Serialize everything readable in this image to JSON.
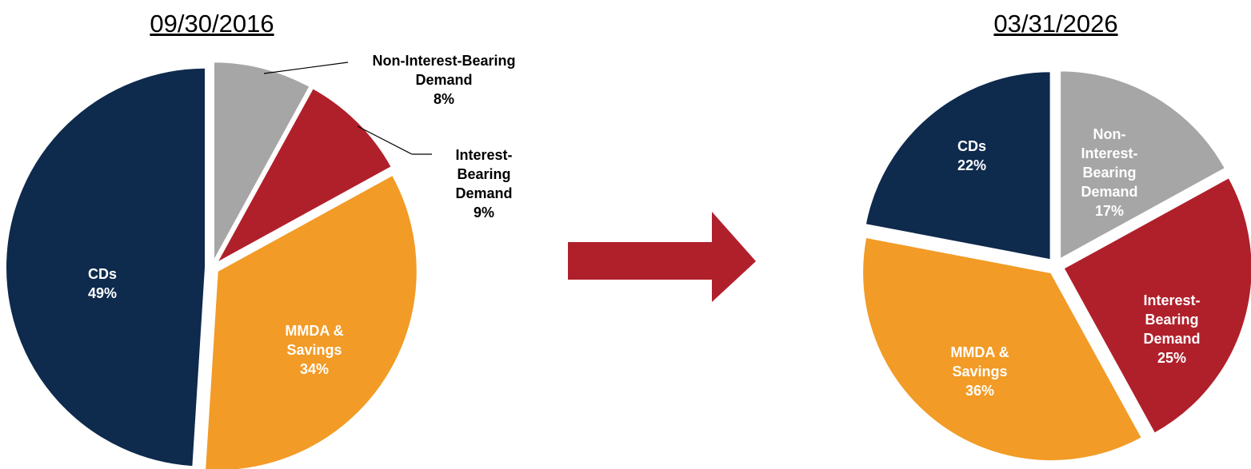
{
  "chart_data": [
    {
      "type": "pie",
      "title": "09/30/2016",
      "categories": [
        "Non-Interest-Bearing Demand",
        "Interest-Bearing Demand",
        "MMDA & Savings",
        "CDs"
      ],
      "values": [
        8,
        9,
        34,
        49
      ],
      "value_labels": [
        "8%",
        "9%",
        "34%",
        "49%"
      ],
      "colors": [
        "#a6a6a6",
        "#b0202b",
        "#f29b26",
        "#0e2a4d"
      ]
    },
    {
      "type": "pie",
      "title": "03/31/2026",
      "categories": [
        "Non-Interest-Bearing Demand",
        "Interest-Bearing Demand",
        "MMDA & Savings",
        "CDs"
      ],
      "values": [
        17,
        25,
        36,
        22
      ],
      "value_labels": [
        "17%",
        "25%",
        "36%",
        "22%"
      ],
      "colors": [
        "#a6a6a6",
        "#b0202b",
        "#f29b26",
        "#0e2a4d"
      ]
    }
  ]
}
